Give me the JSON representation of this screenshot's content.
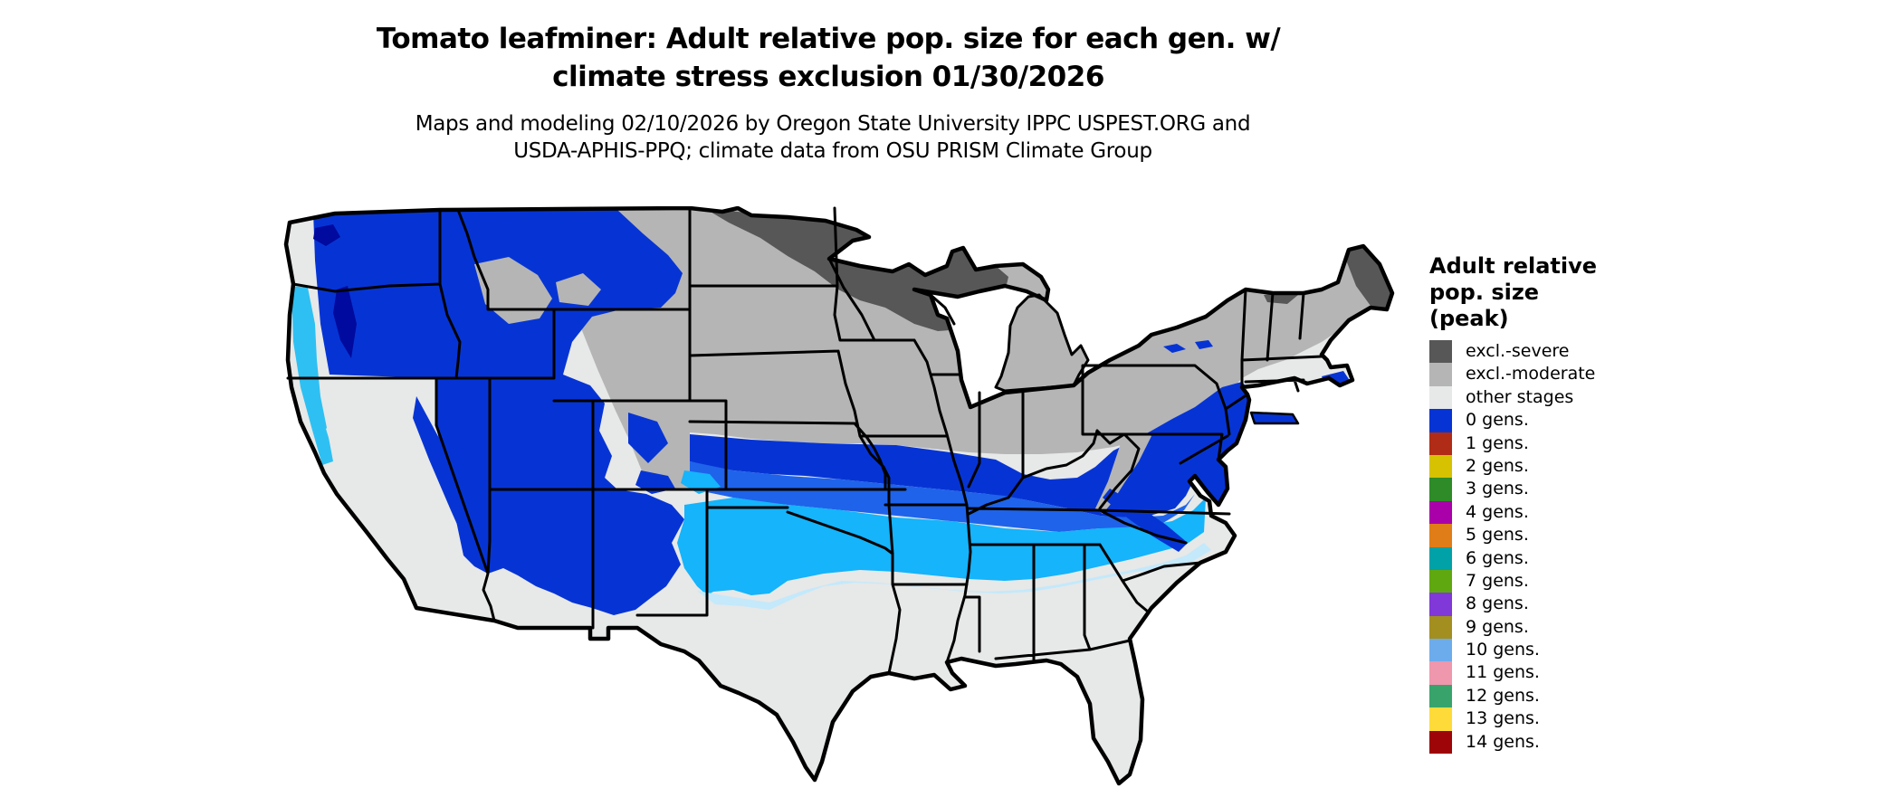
{
  "figure": {
    "title_line1": "Tomato leafminer: Adult relative pop. size for each gen. w/",
    "title_line2": "climate stress exclusion 01/30/2026",
    "subtitle_line1": "Maps and modeling 02/10/2026 by Oregon State University IPPC USPEST.ORG and",
    "subtitle_line2": "USDA-APHIS-PPQ; climate data from OSU PRISM Climate Group"
  },
  "legend": {
    "title_line1": "Adult relative",
    "title_line2": "pop. size",
    "title_line3": "(peak)",
    "items": [
      {
        "label": "excl.-severe",
        "color": "#575757"
      },
      {
        "label": "excl.-moderate",
        "color": "#b5b5b5"
      },
      {
        "label": "other stages",
        "color": "#e7e8e8"
      },
      {
        "label": "0 gens.",
        "color": "#0634d4"
      },
      {
        "label": "1 gens.",
        "color": "#b02c16"
      },
      {
        "label": "2 gens.",
        "color": "#d6c200"
      },
      {
        "label": "3 gens.",
        "color": "#2e8b28"
      },
      {
        "label": "4 gens.",
        "color": "#aa00aa"
      },
      {
        "label": "5 gens.",
        "color": "#e07d18"
      },
      {
        "label": "6 gens.",
        "color": "#00a2a8"
      },
      {
        "label": "7 gens.",
        "color": "#5fa80f"
      },
      {
        "label": "8 gens.",
        "color": "#8038d8"
      },
      {
        "label": "9 gens.",
        "color": "#a28f1f"
      },
      {
        "label": "10 gens.",
        "color": "#6dacec"
      },
      {
        "label": "11 gens.",
        "color": "#ef97ac"
      },
      {
        "label": "12 gens.",
        "color": "#38a46c"
      },
      {
        "label": "13 gens.",
        "color": "#fedb38"
      },
      {
        "label": "14 gens.",
        "color": "#9e0508"
      }
    ]
  },
  "map": {
    "colors": {
      "background": "#ffffff",
      "other_stages": "#e7e8e8",
      "excl_moderate": "#b5b5b5",
      "excl_severe": "#575757",
      "gens0_blue": "#0634d4",
      "band_medium_blue": "#1f63ea",
      "band_cyan": "#15b4fb",
      "band_pale_cyan": "#c3e9fb",
      "coast_cyan": "#2ec0f2",
      "navy_dark": "#000a9e",
      "lake_white": "#ffffff",
      "border_black": "#000000"
    }
  }
}
